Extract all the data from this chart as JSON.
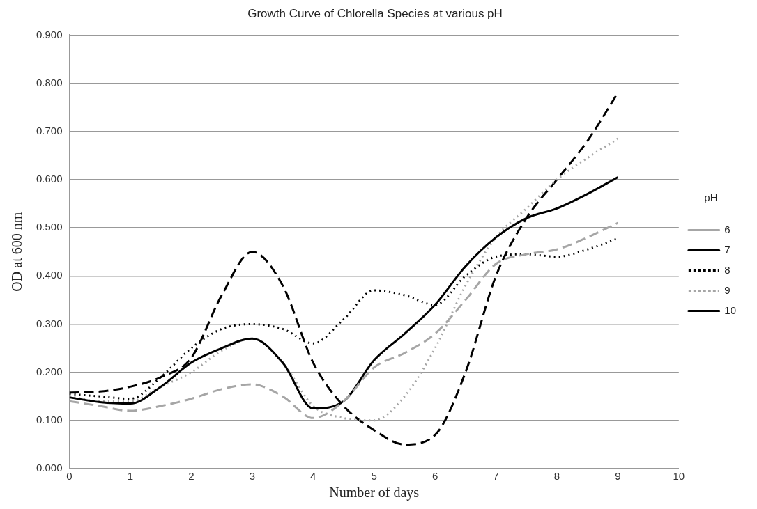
{
  "chart_data": {
    "type": "line",
    "title": "Growth Curve of Chlorella Species at various pH",
    "xlabel": "Number of days",
    "ylabel": "OD at 600 nm",
    "legend_title": "pH",
    "legend": "right",
    "grid": "y",
    "marker": "none",
    "x": [
      0,
      0.5,
      1,
      1.5,
      2,
      2.5,
      3,
      3.5,
      4,
      4.5,
      5,
      5.5,
      6,
      6.5,
      7,
      7.5,
      8,
      8.5,
      9
    ],
    "xlim": [
      0,
      10
    ],
    "xticks": [
      0,
      1,
      2,
      3,
      4,
      5,
      6,
      7,
      8,
      9,
      10
    ],
    "ylim": [
      0,
      0.9
    ],
    "yticks": [
      {
        "value": 0,
        "label": "0.000"
      },
      {
        "value": 0.1,
        "label": "0.100"
      },
      {
        "value": 0.2,
        "label": "0.200"
      },
      {
        "value": 0.3,
        "label": "0.300"
      },
      {
        "value": 0.4,
        "label": "0.400"
      },
      {
        "value": 0.5,
        "label": "0.500"
      },
      {
        "value": 0.6,
        "label": "0.600"
      },
      {
        "value": 0.7,
        "label": "0.700"
      },
      {
        "value": 0.8,
        "label": "0.800"
      },
      {
        "value": 0.9,
        "label": "0.900"
      }
    ],
    "series": [
      {
        "name": "6",
        "color": "#a6a6a6",
        "line_style": "dashed",
        "values": [
          0.14,
          0.13,
          0.12,
          0.13,
          0.145,
          0.165,
          0.175,
          0.15,
          0.105,
          0.14,
          0.21,
          0.24,
          0.28,
          0.35,
          0.425,
          0.445,
          0.455,
          0.48,
          0.51
        ]
      },
      {
        "name": "7",
        "color": "#000000",
        "line_style": "solid",
        "values": [
          0.148,
          0.138,
          0.135,
          0.17,
          0.22,
          0.25,
          0.27,
          0.22,
          0.125,
          0.14,
          0.225,
          0.28,
          0.34,
          0.42,
          0.48,
          0.52,
          0.54,
          0.57,
          0.605
        ]
      },
      {
        "name": "8",
        "color": "#000000",
        "line_style": "dotted",
        "values": [
          0.155,
          0.15,
          0.145,
          0.19,
          0.25,
          0.29,
          0.3,
          0.29,
          0.26,
          0.31,
          0.37,
          0.36,
          0.34,
          0.4,
          0.44,
          0.445,
          0.44,
          0.455,
          0.478
        ]
      },
      {
        "name": "9",
        "color": "#a6a6a6",
        "line_style": "dotted",
        "values": [
          0.15,
          0.14,
          0.14,
          0.17,
          0.2,
          0.245,
          0.27,
          0.22,
          0.13,
          0.105,
          0.1,
          0.15,
          0.25,
          0.38,
          0.48,
          0.54,
          0.6,
          0.645,
          0.685
        ]
      },
      {
        "name": "10",
        "color": "#000000",
        "line_style": "dashed",
        "values": [
          0.158,
          0.16,
          0.17,
          0.19,
          0.23,
          0.36,
          0.45,
          0.38,
          0.22,
          0.13,
          0.08,
          0.05,
          0.07,
          0.2,
          0.4,
          0.52,
          0.6,
          0.68,
          0.78
        ]
      }
    ]
  }
}
